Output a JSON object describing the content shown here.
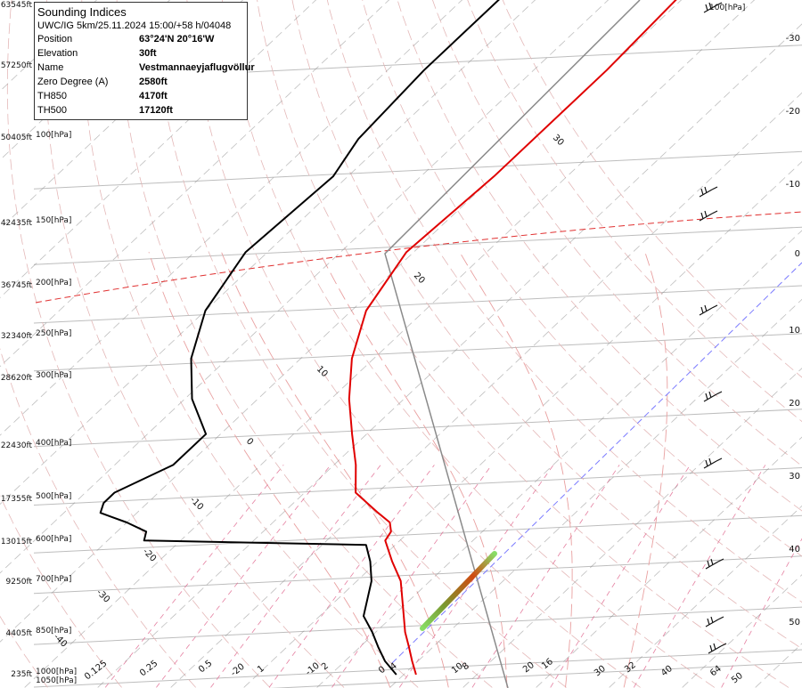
{
  "chart_data": {
    "type": "line",
    "title": "Sounding Indices",
    "subtitle": "UWC/IG 5km/25.11.2024 15:00/+58 h/04048",
    "indices": [
      {
        "label": "Position",
        "value": "63°24'N 20°16'W"
      },
      {
        "label": "Elevation",
        "value": "30ft"
      },
      {
        "label": "Name",
        "value": "Vestmannaeyjaflugvöllur"
      },
      {
        "label": "Zero Degree (A)",
        "value": "2580ft"
      },
      {
        "label": "TH850",
        "value": "4170ft"
      },
      {
        "label": "TH500",
        "value": "17120ft"
      }
    ],
    "pressure_levels": [
      {
        "p": 1050,
        "label": "1050[hPa]",
        "alt": ""
      },
      {
        "p": 1000,
        "label": "1000[hPa]",
        "alt": "235ft"
      },
      {
        "p": 850,
        "label": "850[hPa]",
        "alt": "4405ft"
      },
      {
        "p": 700,
        "label": "700[hPa]",
        "alt": "9250ft"
      },
      {
        "p": 600,
        "label": "600[hPa]",
        "alt": "13015ft"
      },
      {
        "p": 500,
        "label": "500[hPa]",
        "alt": "17355ft"
      },
      {
        "p": 400,
        "label": "400[hPa]",
        "alt": "22430ft"
      },
      {
        "p": 300,
        "label": "300[hPa]",
        "alt": "28620ft"
      },
      {
        "p": 250,
        "label": "250[hPa]",
        "alt": "32340ft"
      },
      {
        "p": 200,
        "label": "200[hPa]",
        "alt": "36745ft"
      },
      {
        "p": 150,
        "label": "150[hPa]",
        "alt": "42435ft"
      },
      {
        "p": 100,
        "label": "100[hPa]",
        "alt": "50405ft"
      },
      {
        "p": 70,
        "label": "",
        "alt": "57250ft"
      },
      {
        "p": 50,
        "label": "",
        "alt": "63545ft"
      }
    ],
    "top_right_label": "100[hPa]",
    "bottom_ticks": [
      "0.125",
      "0.25",
      "0.5",
      "-20",
      "1",
      "-10",
      "2",
      "0",
      "4",
      "10",
      "8",
      "20",
      "16",
      "30",
      "32",
      "40",
      "64",
      "50"
    ],
    "right_ticks": [
      "-30",
      "-20",
      "-10",
      "0",
      "10",
      "20",
      "30",
      "40",
      "50"
    ],
    "isotherm_labels": [
      "30",
      "20",
      "10",
      "0",
      "-10",
      "-20",
      "-30",
      "-40"
    ],
    "series": [
      {
        "name": "Temperature",
        "points": [
          [
            1000,
            1.7
          ],
          [
            950,
            -0.8
          ],
          [
            900,
            -3.3
          ],
          [
            850,
            -6.0
          ],
          [
            800,
            -8.5
          ],
          [
            700,
            -14.0
          ],
          [
            650,
            -18.0
          ],
          [
            600,
            -22.0
          ],
          [
            580,
            -22.5
          ],
          [
            560,
            -24.0
          ],
          [
            540,
            -27.0
          ],
          [
            500,
            -33.0
          ],
          [
            450,
            -37.0
          ],
          [
            400,
            -42.0
          ],
          [
            350,
            -47.5
          ],
          [
            300,
            -53.0
          ],
          [
            250,
            -58.0
          ],
          [
            200,
            -61.0
          ],
          [
            150,
            -60.0
          ],
          [
            100,
            -60.0
          ],
          [
            70,
            -61.0
          ],
          [
            50,
            -63.0
          ]
        ]
      },
      {
        "name": "Dewpoint",
        "points": [
          [
            1000,
            -1.0
          ],
          [
            950,
            -4.5
          ],
          [
            900,
            -7.5
          ],
          [
            850,
            -10.5
          ],
          [
            800,
            -14.0
          ],
          [
            700,
            -18.0
          ],
          [
            650,
            -21.0
          ],
          [
            610,
            -24.0
          ],
          [
            600,
            -55.0
          ],
          [
            580,
            -56.0
          ],
          [
            560,
            -60.0
          ],
          [
            540,
            -65.0
          ],
          [
            520,
            -66.0
          ],
          [
            500,
            -66.0
          ],
          [
            450,
            -62.0
          ],
          [
            400,
            -62.0
          ],
          [
            350,
            -69.0
          ],
          [
            300,
            -75.0
          ],
          [
            250,
            -80.0
          ],
          [
            200,
            -83.0
          ],
          [
            150,
            -82.0
          ],
          [
            130,
            -84.0
          ],
          [
            100,
            -85.0
          ],
          [
            70,
            -85.0
          ],
          [
            50,
            -85.0
          ]
        ]
      }
    ],
    "grid": true,
    "legend": "none",
    "colors": {
      "temperature": "#e00000",
      "dewpoint": "#000000",
      "isotherm": "#8a8a8a",
      "zero_isotherm": "#e03030",
      "dry_adiabat": "#e4b8b8",
      "moist_adiabat": "#e9a0a0",
      "mixing_ratio": "#e06a90",
      "isobar": "#bdbdbd",
      "lcl_line": "#7b7bff"
    }
  }
}
